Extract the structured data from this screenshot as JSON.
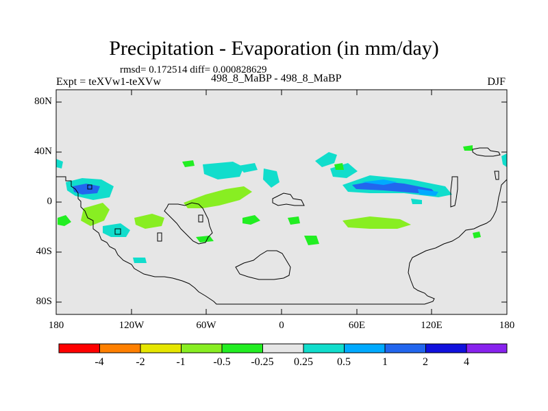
{
  "title": "Precipitation - Evaporation (in mm/day)",
  "stats": "rmsd= 0.172514  diff= 0.000828629",
  "experiment_label": "Expt = teXVw1-teXVw",
  "comparison_label": "498_8_MaBP - 498_8_MaBP",
  "season": "DJF",
  "colors": {
    "background_field": "#e6e6e6",
    "coastline": "#000000",
    "contour_fill": [
      "#ff0000",
      "#ff8000",
      "#e6e600",
      "#88ee22",
      "#22ee22",
      "#e6e6e6",
      "#11ddcc",
      "#00aaff",
      "#2266ee",
      "#1111dd",
      "#8822ee"
    ]
  },
  "map": {
    "projection": "cylindrical-equidistant",
    "lat_ticks": [
      "80N",
      "40N",
      "0",
      "40S",
      "80S"
    ],
    "lon_ticks": [
      "180",
      "120W",
      "60W",
      "0",
      "60E",
      "120E",
      "180"
    ]
  },
  "colorbar": {
    "labels": [
      "-4",
      "-2",
      "-1",
      "-0.5",
      "-0.25",
      "0.25",
      "0.5",
      "1",
      "2",
      "4"
    ]
  }
}
